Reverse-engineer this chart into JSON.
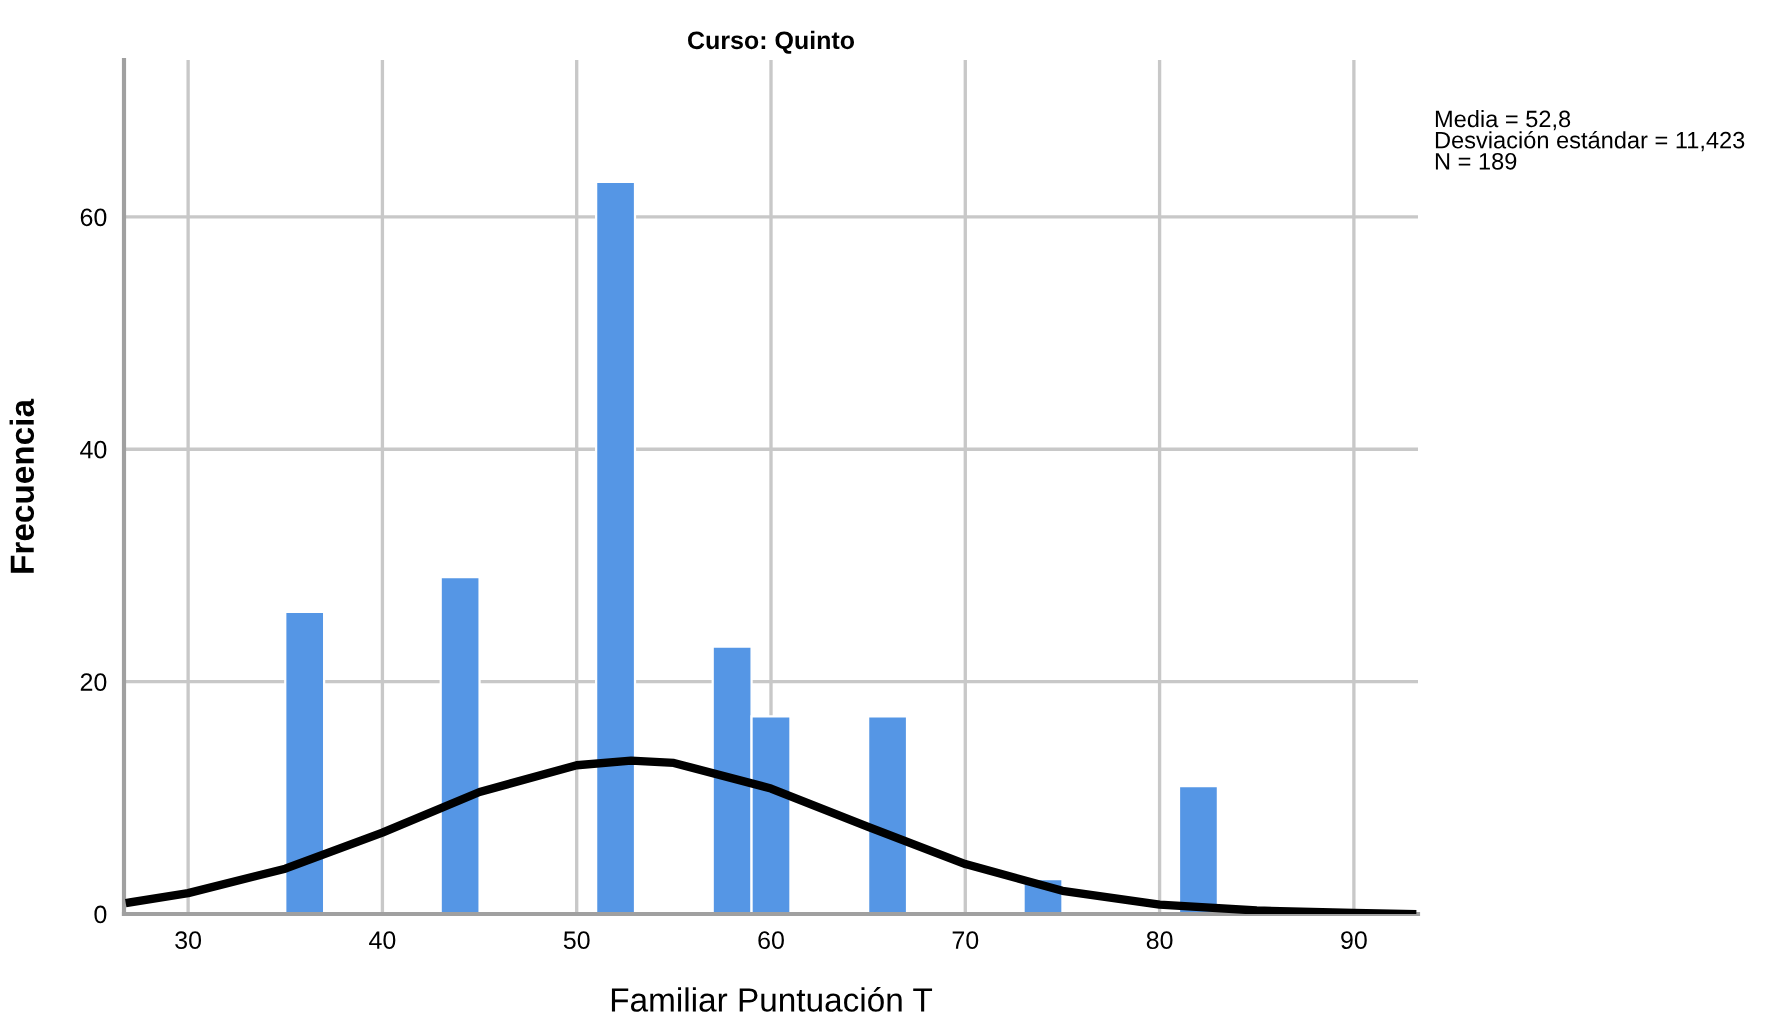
{
  "chart_data": {
    "type": "histogram",
    "title": "Curso: Quinto",
    "xlabel": "Familiar Puntuación T",
    "ylabel": "Frecuencia",
    "bins": [
      27,
      29,
      31,
      33,
      35,
      37,
      39,
      41,
      43,
      45,
      47,
      49,
      51,
      53,
      55,
      57,
      59,
      61,
      63,
      65,
      67,
      69,
      71,
      73,
      75,
      77,
      79,
      81,
      83,
      85,
      87,
      89,
      91,
      93
    ],
    "values": [
      0,
      0,
      0,
      0,
      26,
      0,
      0,
      0,
      29,
      0,
      0,
      0,
      63,
      0,
      0,
      23,
      17,
      0,
      0,
      17,
      0,
      0,
      0,
      3,
      0,
      0,
      0,
      11,
      0,
      0,
      0,
      0,
      0
    ],
    "color": "#5596e5",
    "series": [
      {
        "type": "line",
        "color": "#000000",
        "x": [
          27,
          30,
          35,
          40,
          45,
          50,
          52.8,
          55,
          60,
          65,
          70,
          75,
          80,
          85,
          90,
          93
        ],
        "values": [
          1.0,
          1.8,
          3.9,
          7.0,
          10.5,
          12.8,
          13.2,
          13.0,
          10.8,
          7.5,
          4.3,
          2.0,
          0.8,
          0.3,
          0.1,
          0.0
        ]
      }
    ],
    "xlim": [
      26.7,
      93.3
    ],
    "xticks": [
      30,
      40,
      50,
      60,
      70,
      80,
      90
    ],
    "ylim": [
      0,
      73.5
    ],
    "yticks": [
      0,
      20,
      40,
      60
    ],
    "grid": true,
    "annotations": [
      "Media = 52,8\nDesviación estándar = 11,423\nN = 189"
    ]
  }
}
